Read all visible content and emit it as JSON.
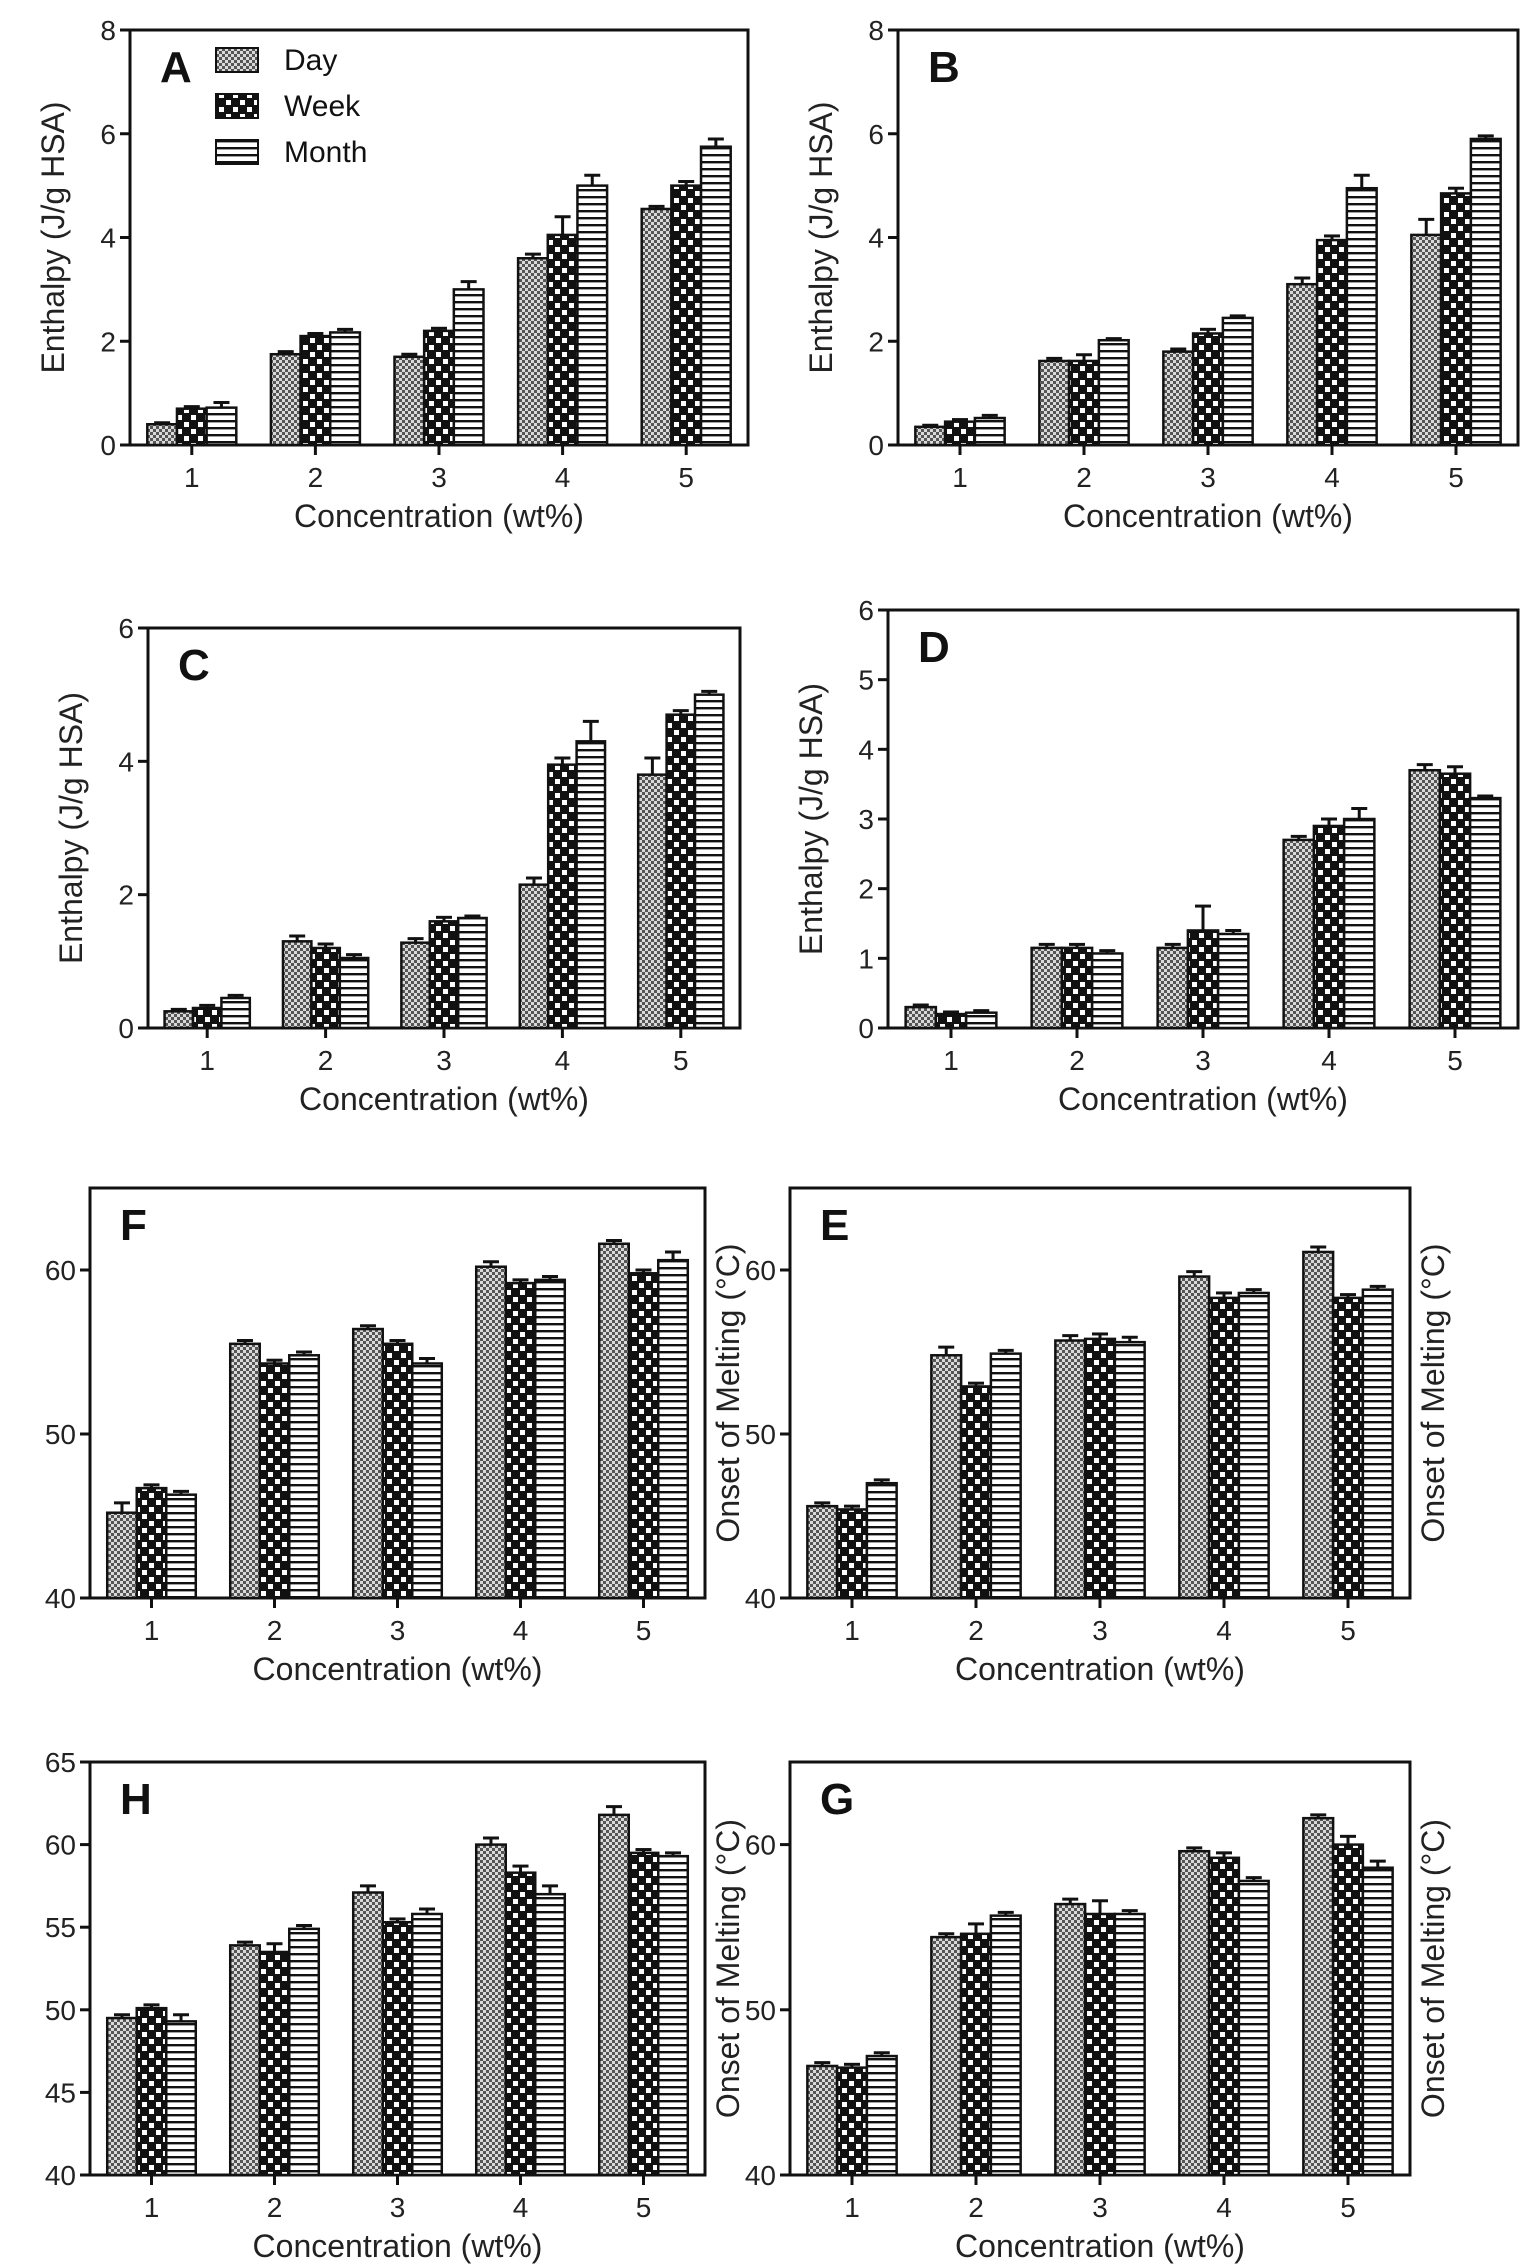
{
  "legend": {
    "day_label": "Day",
    "week_label": "Week",
    "month_label": "Month"
  },
  "chart_data": [
    {
      "panel": "A",
      "type": "bar",
      "categories": [
        "1",
        "2",
        "3",
        "4",
        "5"
      ],
      "xlabel": "Concentration (wt%)",
      "ylabel": "Enthalpy (J/g HSA)",
      "ylabel_side": "left",
      "ylim": [
        0,
        8
      ],
      "yticks": [
        0,
        2,
        4,
        6,
        8
      ],
      "series": [
        {
          "name": "Day",
          "values": [
            0.4,
            1.75,
            1.7,
            3.6,
            4.55
          ],
          "errors": [
            0.03,
            0.05,
            0.05,
            0.08,
            0.05
          ]
        },
        {
          "name": "Week",
          "values": [
            0.7,
            2.1,
            2.2,
            4.05,
            5.0
          ],
          "errors": [
            0.04,
            0.05,
            0.05,
            0.35,
            0.08
          ]
        },
        {
          "name": "Month",
          "values": [
            0.72,
            2.17,
            3.0,
            5.0,
            5.75
          ],
          "errors": [
            0.1,
            0.06,
            0.15,
            0.2,
            0.15
          ]
        }
      ]
    },
    {
      "panel": "B",
      "type": "bar",
      "categories": [
        "1",
        "2",
        "3",
        "4",
        "5"
      ],
      "xlabel": "Concentration (wt%)",
      "ylabel": "Enthalpy (J/g HSA)",
      "ylabel_side": "left",
      "ylim": [
        0,
        8
      ],
      "yticks": [
        0,
        2,
        4,
        6,
        8
      ],
      "series": [
        {
          "name": "Day",
          "values": [
            0.35,
            1.62,
            1.8,
            3.1,
            4.05
          ],
          "errors": [
            0.03,
            0.05,
            0.05,
            0.12,
            0.3
          ]
        },
        {
          "name": "Week",
          "values": [
            0.45,
            1.62,
            2.15,
            3.95,
            4.85
          ],
          "errors": [
            0.04,
            0.12,
            0.08,
            0.08,
            0.1
          ]
        },
        {
          "name": "Month",
          "values": [
            0.52,
            2.02,
            2.45,
            4.95,
            5.9
          ],
          "errors": [
            0.05,
            0.03,
            0.04,
            0.25,
            0.06
          ]
        }
      ]
    },
    {
      "panel": "C",
      "type": "bar",
      "categories": [
        "1",
        "2",
        "3",
        "4",
        "5"
      ],
      "xlabel": "Concentration (wt%)",
      "ylabel": "Enthalpy (J/g HSA)",
      "ylabel_side": "left",
      "ylim": [
        0,
        6
      ],
      "yticks": [
        0,
        2,
        4,
        6
      ],
      "series": [
        {
          "name": "Day",
          "values": [
            0.25,
            1.3,
            1.28,
            2.15,
            3.8
          ],
          "errors": [
            0.03,
            0.08,
            0.06,
            0.1,
            0.25
          ]
        },
        {
          "name": "Week",
          "values": [
            0.3,
            1.2,
            1.6,
            3.95,
            4.7
          ],
          "errors": [
            0.04,
            0.06,
            0.06,
            0.1,
            0.06
          ]
        },
        {
          "name": "Month",
          "values": [
            0.45,
            1.05,
            1.65,
            4.3,
            5.0
          ],
          "errors": [
            0.04,
            0.05,
            0.03,
            0.3,
            0.05
          ]
        }
      ]
    },
    {
      "panel": "D",
      "type": "bar",
      "categories": [
        "1",
        "2",
        "3",
        "4",
        "5"
      ],
      "xlabel": "Concentration (wt%)",
      "ylabel": "Enthalpy (J/g HSA)",
      "ylabel_side": "left",
      "ylim": [
        0,
        6
      ],
      "yticks": [
        0,
        1,
        2,
        3,
        4,
        5,
        6
      ],
      "series": [
        {
          "name": "Day",
          "values": [
            0.3,
            1.15,
            1.15,
            2.7,
            3.7
          ],
          "errors": [
            0.03,
            0.05,
            0.05,
            0.05,
            0.08
          ]
        },
        {
          "name": "Week",
          "values": [
            0.2,
            1.15,
            1.4,
            2.9,
            3.65
          ],
          "errors": [
            0.03,
            0.05,
            0.35,
            0.1,
            0.1
          ]
        },
        {
          "name": "Month",
          "values": [
            0.22,
            1.07,
            1.35,
            3.0,
            3.3
          ],
          "errors": [
            0.03,
            0.04,
            0.05,
            0.15,
            0.03
          ]
        }
      ]
    },
    {
      "panel": "F",
      "type": "bar",
      "categories": [
        "1",
        "2",
        "3",
        "4",
        "5"
      ],
      "xlabel": "Concentration (wt%)",
      "ylabel": "Onset of Melting (°C)",
      "ylabel_side": "right",
      "ylim": [
        40,
        65
      ],
      "yticks": [
        40,
        50,
        60
      ],
      "series": [
        {
          "name": "Day",
          "values": [
            45.2,
            55.5,
            56.4,
            60.2,
            61.6
          ],
          "errors": [
            0.6,
            0.2,
            0.2,
            0.3,
            0.2
          ]
        },
        {
          "name": "Week",
          "values": [
            46.7,
            54.3,
            55.5,
            59.2,
            59.8
          ],
          "errors": [
            0.2,
            0.2,
            0.2,
            0.2,
            0.2
          ]
        },
        {
          "name": "Month",
          "values": [
            46.3,
            54.8,
            54.3,
            59.4,
            60.6
          ],
          "errors": [
            0.2,
            0.2,
            0.3,
            0.2,
            0.5
          ]
        }
      ]
    },
    {
      "panel": "E",
      "type": "bar",
      "categories": [
        "1",
        "2",
        "3",
        "4",
        "5"
      ],
      "xlabel": "Concentration (wt%)",
      "ylabel": "Onset of Melting (°C)",
      "ylabel_side": "right",
      "ylim": [
        40,
        65
      ],
      "yticks": [
        40,
        50,
        60
      ],
      "series": [
        {
          "name": "Day",
          "values": [
            45.6,
            54.8,
            55.7,
            59.6,
            61.1
          ],
          "errors": [
            0.2,
            0.5,
            0.3,
            0.3,
            0.3
          ]
        },
        {
          "name": "Week",
          "values": [
            45.4,
            52.9,
            55.8,
            58.3,
            58.3
          ],
          "errors": [
            0.2,
            0.2,
            0.3,
            0.3,
            0.2
          ]
        },
        {
          "name": "Month",
          "values": [
            47.0,
            54.9,
            55.6,
            58.6,
            58.8
          ],
          "errors": [
            0.2,
            0.2,
            0.3,
            0.2,
            0.2
          ]
        }
      ]
    },
    {
      "panel": "H",
      "type": "bar",
      "categories": [
        "1",
        "2",
        "3",
        "4",
        "5"
      ],
      "xlabel": "Concentration (wt%)",
      "ylabel": "Onset of Melting (°C)",
      "ylabel_side": "right",
      "ylim": [
        40,
        65
      ],
      "yticks": [
        40,
        45,
        50,
        55,
        60,
        65
      ],
      "series": [
        {
          "name": "Day",
          "values": [
            49.5,
            53.9,
            57.1,
            60.0,
            61.8
          ],
          "errors": [
            0.2,
            0.2,
            0.4,
            0.4,
            0.5
          ]
        },
        {
          "name": "Week",
          "values": [
            50.1,
            53.5,
            55.3,
            58.3,
            59.5
          ],
          "errors": [
            0.2,
            0.5,
            0.2,
            0.4,
            0.2
          ]
        },
        {
          "name": "Month",
          "values": [
            49.3,
            54.9,
            55.8,
            57.0,
            59.3
          ],
          "errors": [
            0.4,
            0.2,
            0.3,
            0.5,
            0.2
          ]
        }
      ]
    },
    {
      "panel": "G",
      "type": "bar",
      "categories": [
        "1",
        "2",
        "3",
        "4",
        "5"
      ],
      "xlabel": "Concentration (wt%)",
      "ylabel": "Onset of Melting (°C)",
      "ylabel_side": "right",
      "ylim": [
        40,
        65
      ],
      "yticks": [
        40,
        50,
        60
      ],
      "series": [
        {
          "name": "Day",
          "values": [
            46.6,
            54.4,
            56.4,
            59.6,
            61.6
          ],
          "errors": [
            0.2,
            0.2,
            0.3,
            0.2,
            0.2
          ]
        },
        {
          "name": "Week",
          "values": [
            46.5,
            54.6,
            55.8,
            59.2,
            60.0
          ],
          "errors": [
            0.2,
            0.6,
            0.8,
            0.3,
            0.5
          ]
        },
        {
          "name": "Month",
          "values": [
            47.2,
            55.7,
            55.8,
            57.8,
            58.6
          ],
          "errors": [
            0.2,
            0.2,
            0.2,
            0.2,
            0.4
          ]
        }
      ]
    }
  ]
}
